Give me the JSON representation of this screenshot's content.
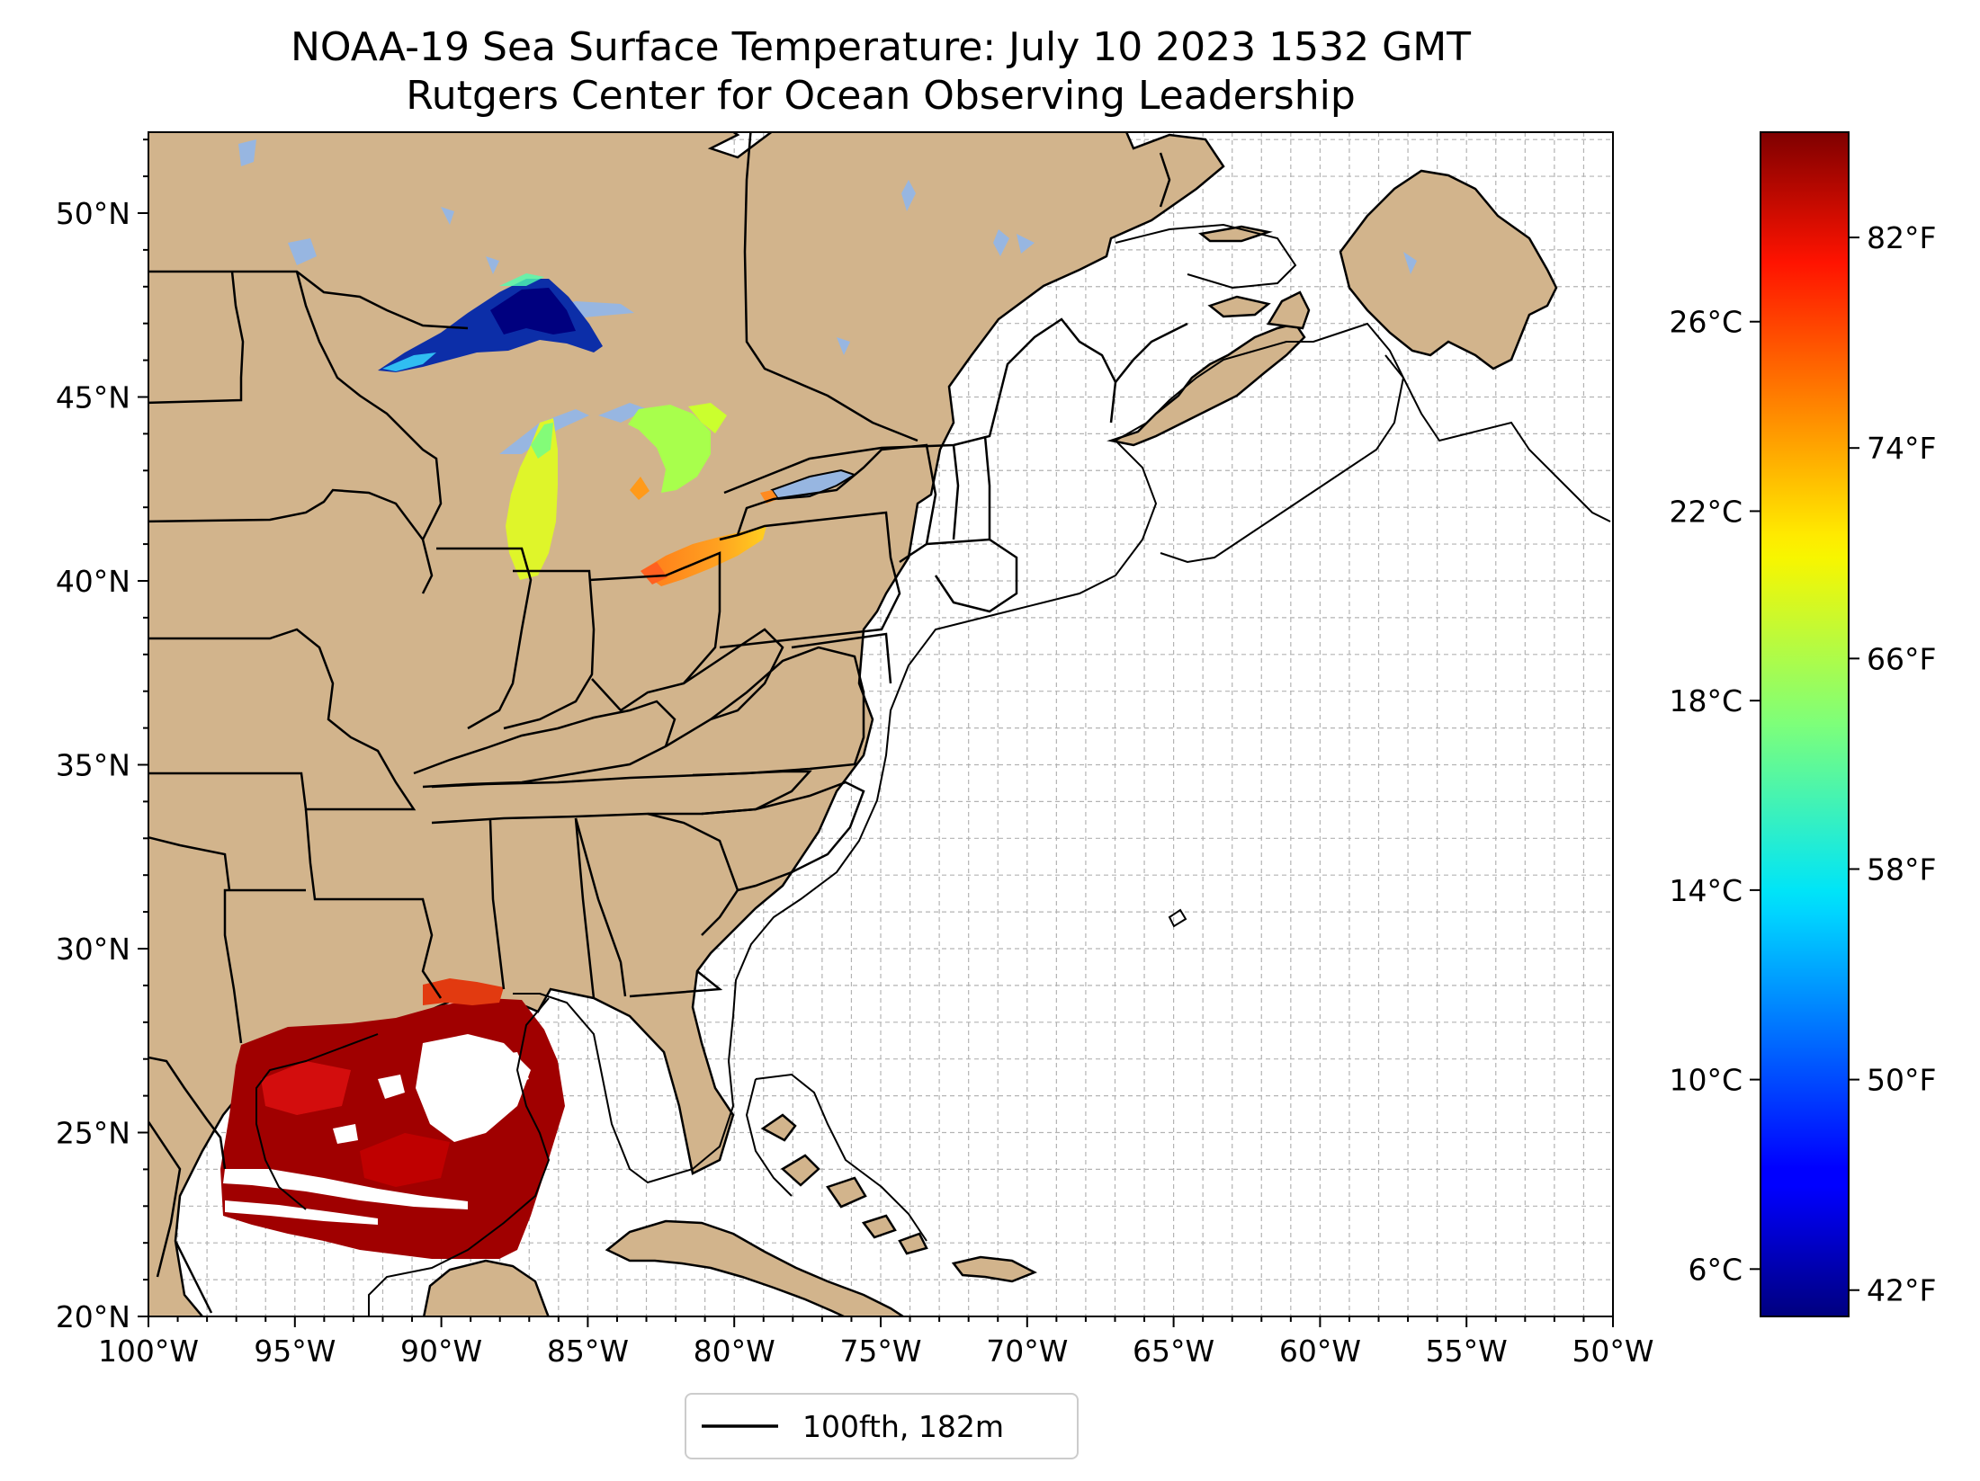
{
  "title": {
    "line1": "NOAA-19 Sea Surface Temperature: July 10 2023 1532 GMT",
    "line2": "Rutgers Center for Ocean Observing Leadership"
  },
  "map": {
    "lon_range": [
      -100,
      -50
    ],
    "lat_range": [
      20,
      52.2
    ],
    "lon_ticks": [
      {
        "value": -100,
        "label": "100°W"
      },
      {
        "value": -95,
        "label": "95°W"
      },
      {
        "value": -90,
        "label": "90°W"
      },
      {
        "value": -85,
        "label": "85°W"
      },
      {
        "value": -80,
        "label": "80°W"
      },
      {
        "value": -75,
        "label": "75°W"
      },
      {
        "value": -70,
        "label": "70°W"
      },
      {
        "value": -65,
        "label": "65°W"
      },
      {
        "value": -60,
        "label": "60°W"
      },
      {
        "value": -55,
        "label": "55°W"
      },
      {
        "value": -50,
        "label": "50°W"
      }
    ],
    "lat_ticks": [
      {
        "value": 20,
        "label": "20°N"
      },
      {
        "value": 25,
        "label": "25°N"
      },
      {
        "value": 30,
        "label": "30°N"
      },
      {
        "value": 35,
        "label": "35°N"
      },
      {
        "value": 40,
        "label": "40°N"
      },
      {
        "value": 45,
        "label": "45°N"
      },
      {
        "value": 50,
        "label": "50°N"
      }
    ],
    "gridlines": true,
    "land_color": "#d2b48c",
    "ocean_color": "#ffffff",
    "lake_color": "#97b6e1"
  },
  "legend": {
    "entries": [
      {
        "label": "100fth, 182m",
        "color": "#000000"
      }
    ],
    "placement": "bottom-center"
  },
  "colorbar": {
    "colormap": "jet",
    "range_c": [
      5,
      30
    ],
    "celsius_ticks": [
      {
        "value": 6,
        "label": "6°C"
      },
      {
        "value": 10,
        "label": "10°C"
      },
      {
        "value": 14,
        "label": "14°C"
      },
      {
        "value": 18,
        "label": "18°C"
      },
      {
        "value": 22,
        "label": "22°C"
      },
      {
        "value": 26,
        "label": "26°C"
      }
    ],
    "fahrenheit_ticks": [
      {
        "value": 42,
        "label": "42°F"
      },
      {
        "value": 50,
        "label": "50°F"
      },
      {
        "value": 58,
        "label": "58°F"
      },
      {
        "value": 66,
        "label": "66°F"
      },
      {
        "value": 74,
        "label": "74°F"
      },
      {
        "value": 82,
        "label": "82°F"
      }
    ]
  }
}
